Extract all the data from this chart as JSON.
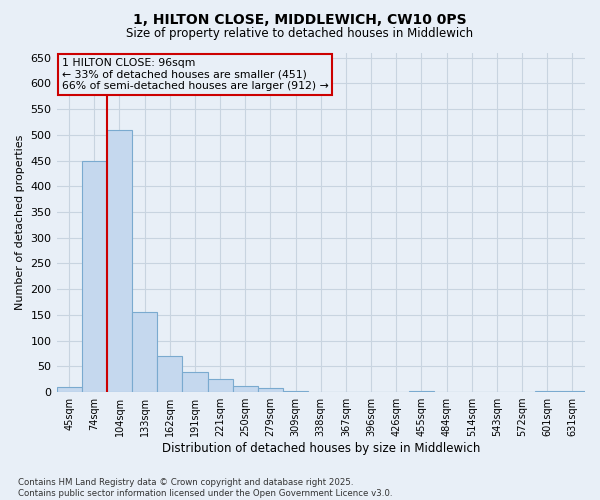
{
  "title_line1": "1, HILTON CLOSE, MIDDLEWICH, CW10 0PS",
  "title_line2": "Size of property relative to detached houses in Middlewich",
  "xlabel": "Distribution of detached houses by size in Middlewich",
  "ylabel": "Number of detached properties",
  "footnote": "Contains HM Land Registry data © Crown copyright and database right 2025.\nContains public sector information licensed under the Open Government Licence v3.0.",
  "annotation_title": "1 HILTON CLOSE: 96sqm",
  "annotation_line1": "← 33% of detached houses are smaller (451)",
  "annotation_line2": "66% of semi-detached houses are larger (912) →",
  "bar_color": "#c5d8ee",
  "bar_edge_color": "#7aaacf",
  "grid_color": "#c8d4e0",
  "background_color": "#e8eff7",
  "vline_color": "#cc0000",
  "annotation_box_color": "#cc0000",
  "categories": [
    "45sqm",
    "74sqm",
    "104sqm",
    "133sqm",
    "162sqm",
    "191sqm",
    "221sqm",
    "250sqm",
    "279sqm",
    "309sqm",
    "338sqm",
    "367sqm",
    "396sqm",
    "426sqm",
    "455sqm",
    "484sqm",
    "514sqm",
    "543sqm",
    "572sqm",
    "601sqm",
    "631sqm"
  ],
  "values": [
    10,
    450,
    510,
    155,
    70,
    40,
    25,
    12,
    8,
    2,
    0,
    0,
    0,
    0,
    2,
    0,
    0,
    0,
    0,
    2,
    2
  ],
  "vline_x": 1.5,
  "ylim": [
    0,
    660
  ],
  "yticks": [
    0,
    50,
    100,
    150,
    200,
    250,
    300,
    350,
    400,
    450,
    500,
    550,
    600,
    650
  ]
}
